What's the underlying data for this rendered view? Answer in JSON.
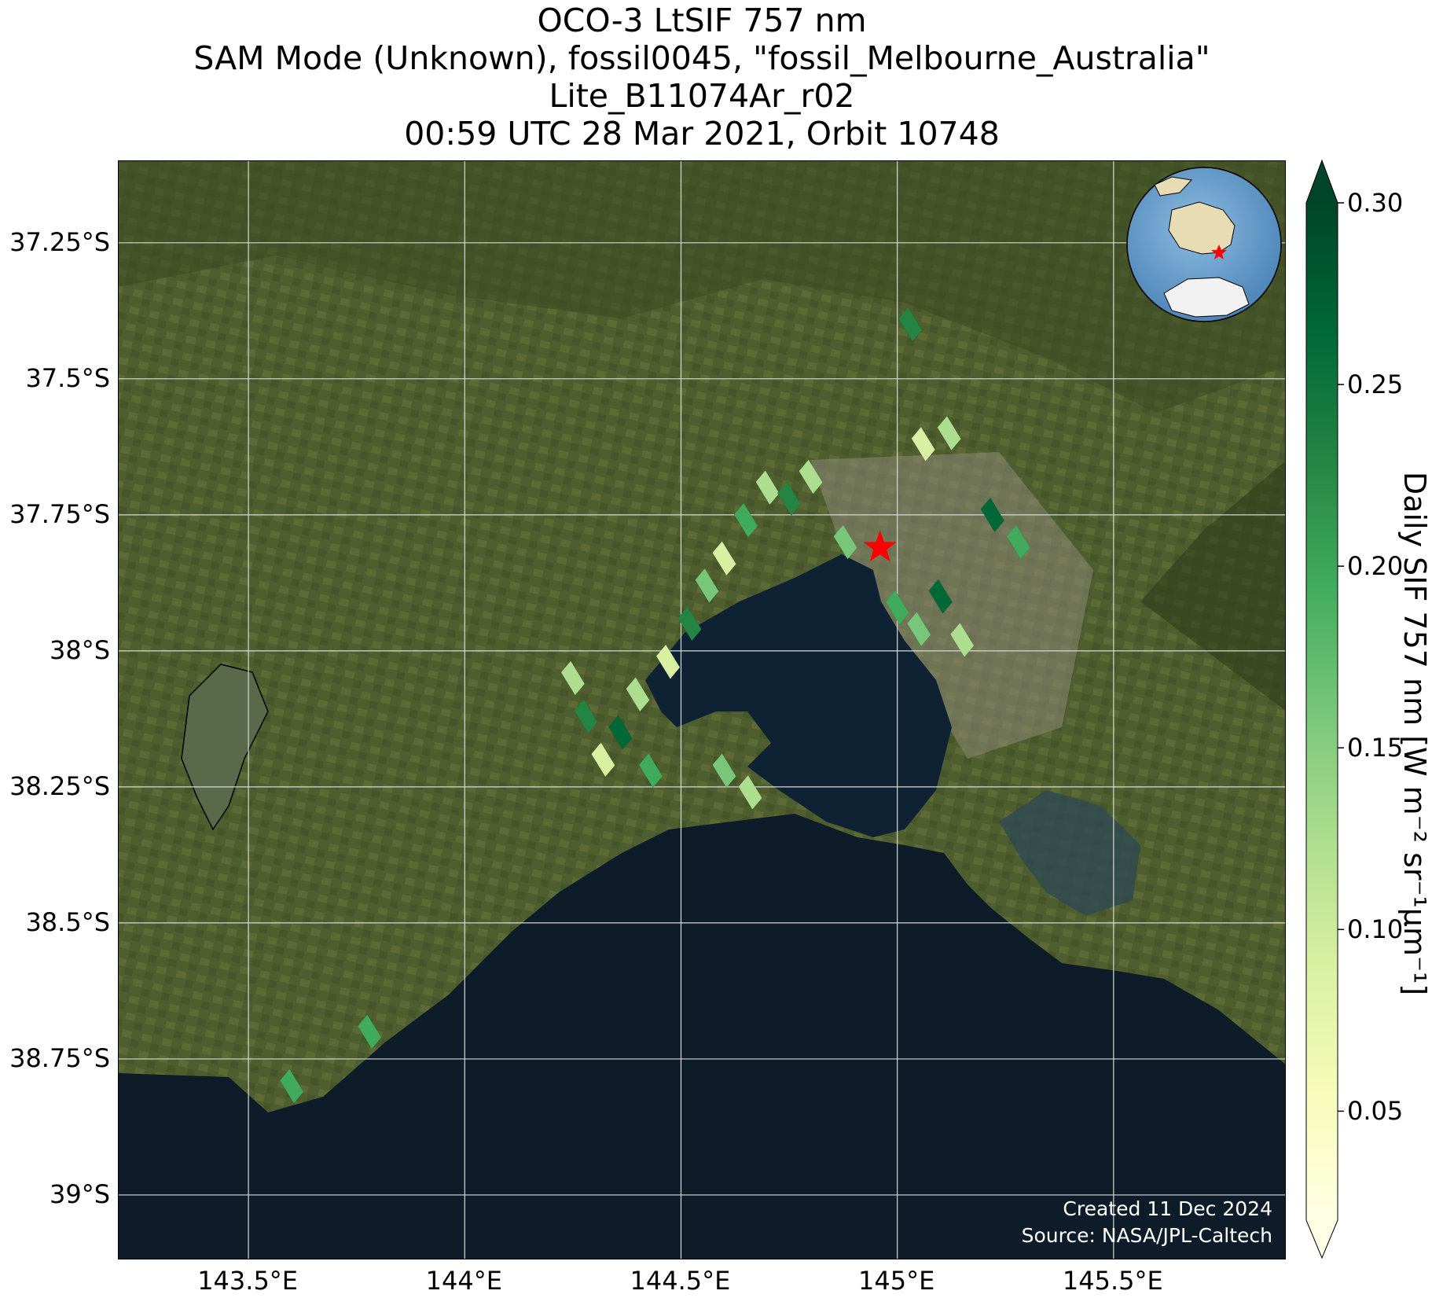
{
  "title": {
    "line1": "OCO-3 LtSIF 757 nm",
    "line2": "SAM Mode (Unknown), fossil0045, \"fossil_Melbourne_Australia\"",
    "line3": "Lite_B11074Ar_r02",
    "line4": "00:59 UTC 28 Mar 2021, Orbit 10748"
  },
  "map": {
    "lon_range": [
      143.2,
      145.9
    ],
    "lat_range": [
      -39.12,
      -37.1
    ],
    "lat_ticks": [
      {
        "value": -37.25,
        "label": "37.25°S"
      },
      {
        "value": -37.5,
        "label": "37.5°S"
      },
      {
        "value": -37.75,
        "label": "37.75°S"
      },
      {
        "value": -38.0,
        "label": "38°S"
      },
      {
        "value": -38.25,
        "label": "38.25°S"
      },
      {
        "value": -38.5,
        "label": "38.5°S"
      },
      {
        "value": -38.75,
        "label": "38.75°S"
      },
      {
        "value": -39.0,
        "label": "39°S"
      }
    ],
    "lon_ticks": [
      {
        "value": 143.5,
        "label": "143.5°E"
      },
      {
        "value": 144.0,
        "label": "144°E"
      },
      {
        "value": 144.5,
        "label": "144.5°E"
      },
      {
        "value": 145.0,
        "label": "145°E"
      },
      {
        "value": 145.5,
        "label": "145.5°E"
      }
    ],
    "target_marker": {
      "lon": 144.96,
      "lat": -37.81,
      "color": "#ff0000"
    },
    "colors": {
      "land": "#4a5a2c",
      "water": "#0e1c2a",
      "grid": "#d8d8d8",
      "urban": "#8c8878"
    }
  },
  "inset_globe": {
    "marker_color": "#ff0000",
    "ocean": "#6fa3cf",
    "land": "#e8dcb5"
  },
  "credit": {
    "line1": "Created 11 Dec 2024",
    "line2": "Source: NASA/JPL-Caltech"
  },
  "colorbar": {
    "label": "Daily SIF 757 nm [W m⁻² sr⁻¹μm⁻¹]",
    "range": [
      0.02,
      0.3
    ],
    "ticks": [
      {
        "value": 0.05,
        "label": "0.05"
      },
      {
        "value": 0.1,
        "label": "0.10"
      },
      {
        "value": 0.15,
        "label": "0.15"
      },
      {
        "value": 0.2,
        "label": "0.20"
      },
      {
        "value": 0.25,
        "label": "0.25"
      },
      {
        "value": 0.3,
        "label": "0.30"
      }
    ],
    "colormap": [
      "#ffffe5",
      "#f7fcb9",
      "#d9f0a3",
      "#addd8e",
      "#78c679",
      "#41ab5d",
      "#238443",
      "#006837",
      "#004529"
    ],
    "extend": "both"
  },
  "soundings": [
    {
      "lon": 144.25,
      "lat": -38.05,
      "sif": 0.12
    },
    {
      "lon": 144.28,
      "lat": -38.12,
      "sif": 0.22
    },
    {
      "lon": 144.32,
      "lat": -38.2,
      "sif": 0.08
    },
    {
      "lon": 144.36,
      "lat": -38.15,
      "sif": 0.26
    },
    {
      "lon": 144.4,
      "lat": -38.08,
      "sif": 0.14
    },
    {
      "lon": 144.43,
      "lat": -38.22,
      "sif": 0.18
    },
    {
      "lon": 144.47,
      "lat": -38.02,
      "sif": 0.1
    },
    {
      "lon": 144.52,
      "lat": -37.95,
      "sif": 0.24
    },
    {
      "lon": 144.56,
      "lat": -37.88,
      "sif": 0.16
    },
    {
      "lon": 144.6,
      "lat": -37.83,
      "sif": 0.09
    },
    {
      "lon": 144.65,
      "lat": -37.76,
      "sif": 0.2
    },
    {
      "lon": 144.7,
      "lat": -37.7,
      "sif": 0.13
    },
    {
      "lon": 144.75,
      "lat": -37.72,
      "sif": 0.23
    },
    {
      "lon": 144.8,
      "lat": -37.68,
      "sif": 0.11
    },
    {
      "lon": 144.88,
      "lat": -37.8,
      "sif": 0.17
    },
    {
      "lon": 145.0,
      "lat": -37.92,
      "sif": 0.21
    },
    {
      "lon": 145.05,
      "lat": -37.96,
      "sif": 0.15
    },
    {
      "lon": 145.1,
      "lat": -37.9,
      "sif": 0.27
    },
    {
      "lon": 145.15,
      "lat": -37.98,
      "sif": 0.12
    },
    {
      "lon": 145.22,
      "lat": -37.75,
      "sif": 0.25
    },
    {
      "lon": 145.28,
      "lat": -37.8,
      "sif": 0.19
    },
    {
      "lon": 145.12,
      "lat": -37.6,
      "sif": 0.14
    },
    {
      "lon": 145.06,
      "lat": -37.62,
      "sif": 0.09
    },
    {
      "lon": 145.03,
      "lat": -37.4,
      "sif": 0.22
    },
    {
      "lon": 144.6,
      "lat": -38.22,
      "sif": 0.16
    },
    {
      "lon": 144.66,
      "lat": -38.26,
      "sif": 0.11
    },
    {
      "lon": 143.6,
      "lat": -38.8,
      "sif": 0.18
    },
    {
      "lon": 143.78,
      "lat": -38.7,
      "sif": 0.2
    }
  ]
}
